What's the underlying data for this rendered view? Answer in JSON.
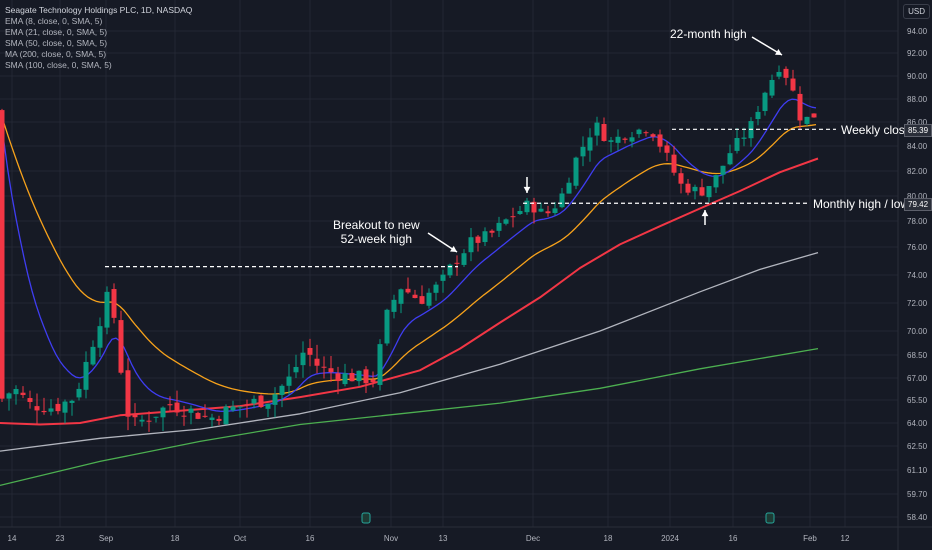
{
  "legend": {
    "title": "Seagate Technology Holdings PLC, 1D, NASDAQ",
    "lines": [
      "EMA (8, close, 0, SMA, 5)",
      "EMA (21, close, 0, SMA, 5)",
      "SMA (50, close, 0, SMA, 5)",
      "MA (200, close, 0, SMA, 5)",
      "SMA (100, close, 0, SMA, 5)"
    ]
  },
  "currency": "USD",
  "annotations": {
    "high22": "22-month high",
    "breakout_line1": "Breakout to new",
    "breakout_line2": "52-week high",
    "weekly_close": "Weekly close",
    "monthly": "Monthly high / low",
    "weekly_close_value": "85.39",
    "monthly_value": "79.42"
  },
  "colors": {
    "up": "#089981",
    "down": "#f23645",
    "ema8": "#3f3df2",
    "ema21": "#f7a21b",
    "sma50": "#f23645",
    "sma100": "#b2b5be",
    "ma200": "#4caf50"
  },
  "chart_data": {
    "type": "candlestick",
    "title": "Seagate Technology Holdings PLC, 1D, NASDAQ",
    "y_ticks": [
      "94.00",
      "92.00",
      "90.00",
      "88.00",
      "86.00",
      "84.00",
      "82.00",
      "80.00",
      "78.00",
      "76.00",
      "74.00",
      "72.00",
      "70.00",
      "68.50",
      "67.00",
      "65.50",
      "64.00",
      "62.50",
      "61.10",
      "59.70",
      "58.40"
    ],
    "x_ticks": [
      "14",
      "23",
      "Sep",
      "18",
      "Oct",
      "16",
      "Nov",
      "13",
      "Dec",
      "18",
      "2024",
      "16",
      "Feb",
      "12"
    ],
    "levels": {
      "weekly_close": 85.39,
      "monthly_high_low": 79.42,
      "breakout_level": 74.6
    },
    "series_summary": {
      "ema8_end": 85.8,
      "ema21_end": 85.4,
      "sma50_end": 83.0,
      "sma100_end": 75.6,
      "ma200_end": 68.9
    },
    "price_range": [
      58.4,
      94.0
    ],
    "period": "Aug 2023 - Feb 2024"
  }
}
